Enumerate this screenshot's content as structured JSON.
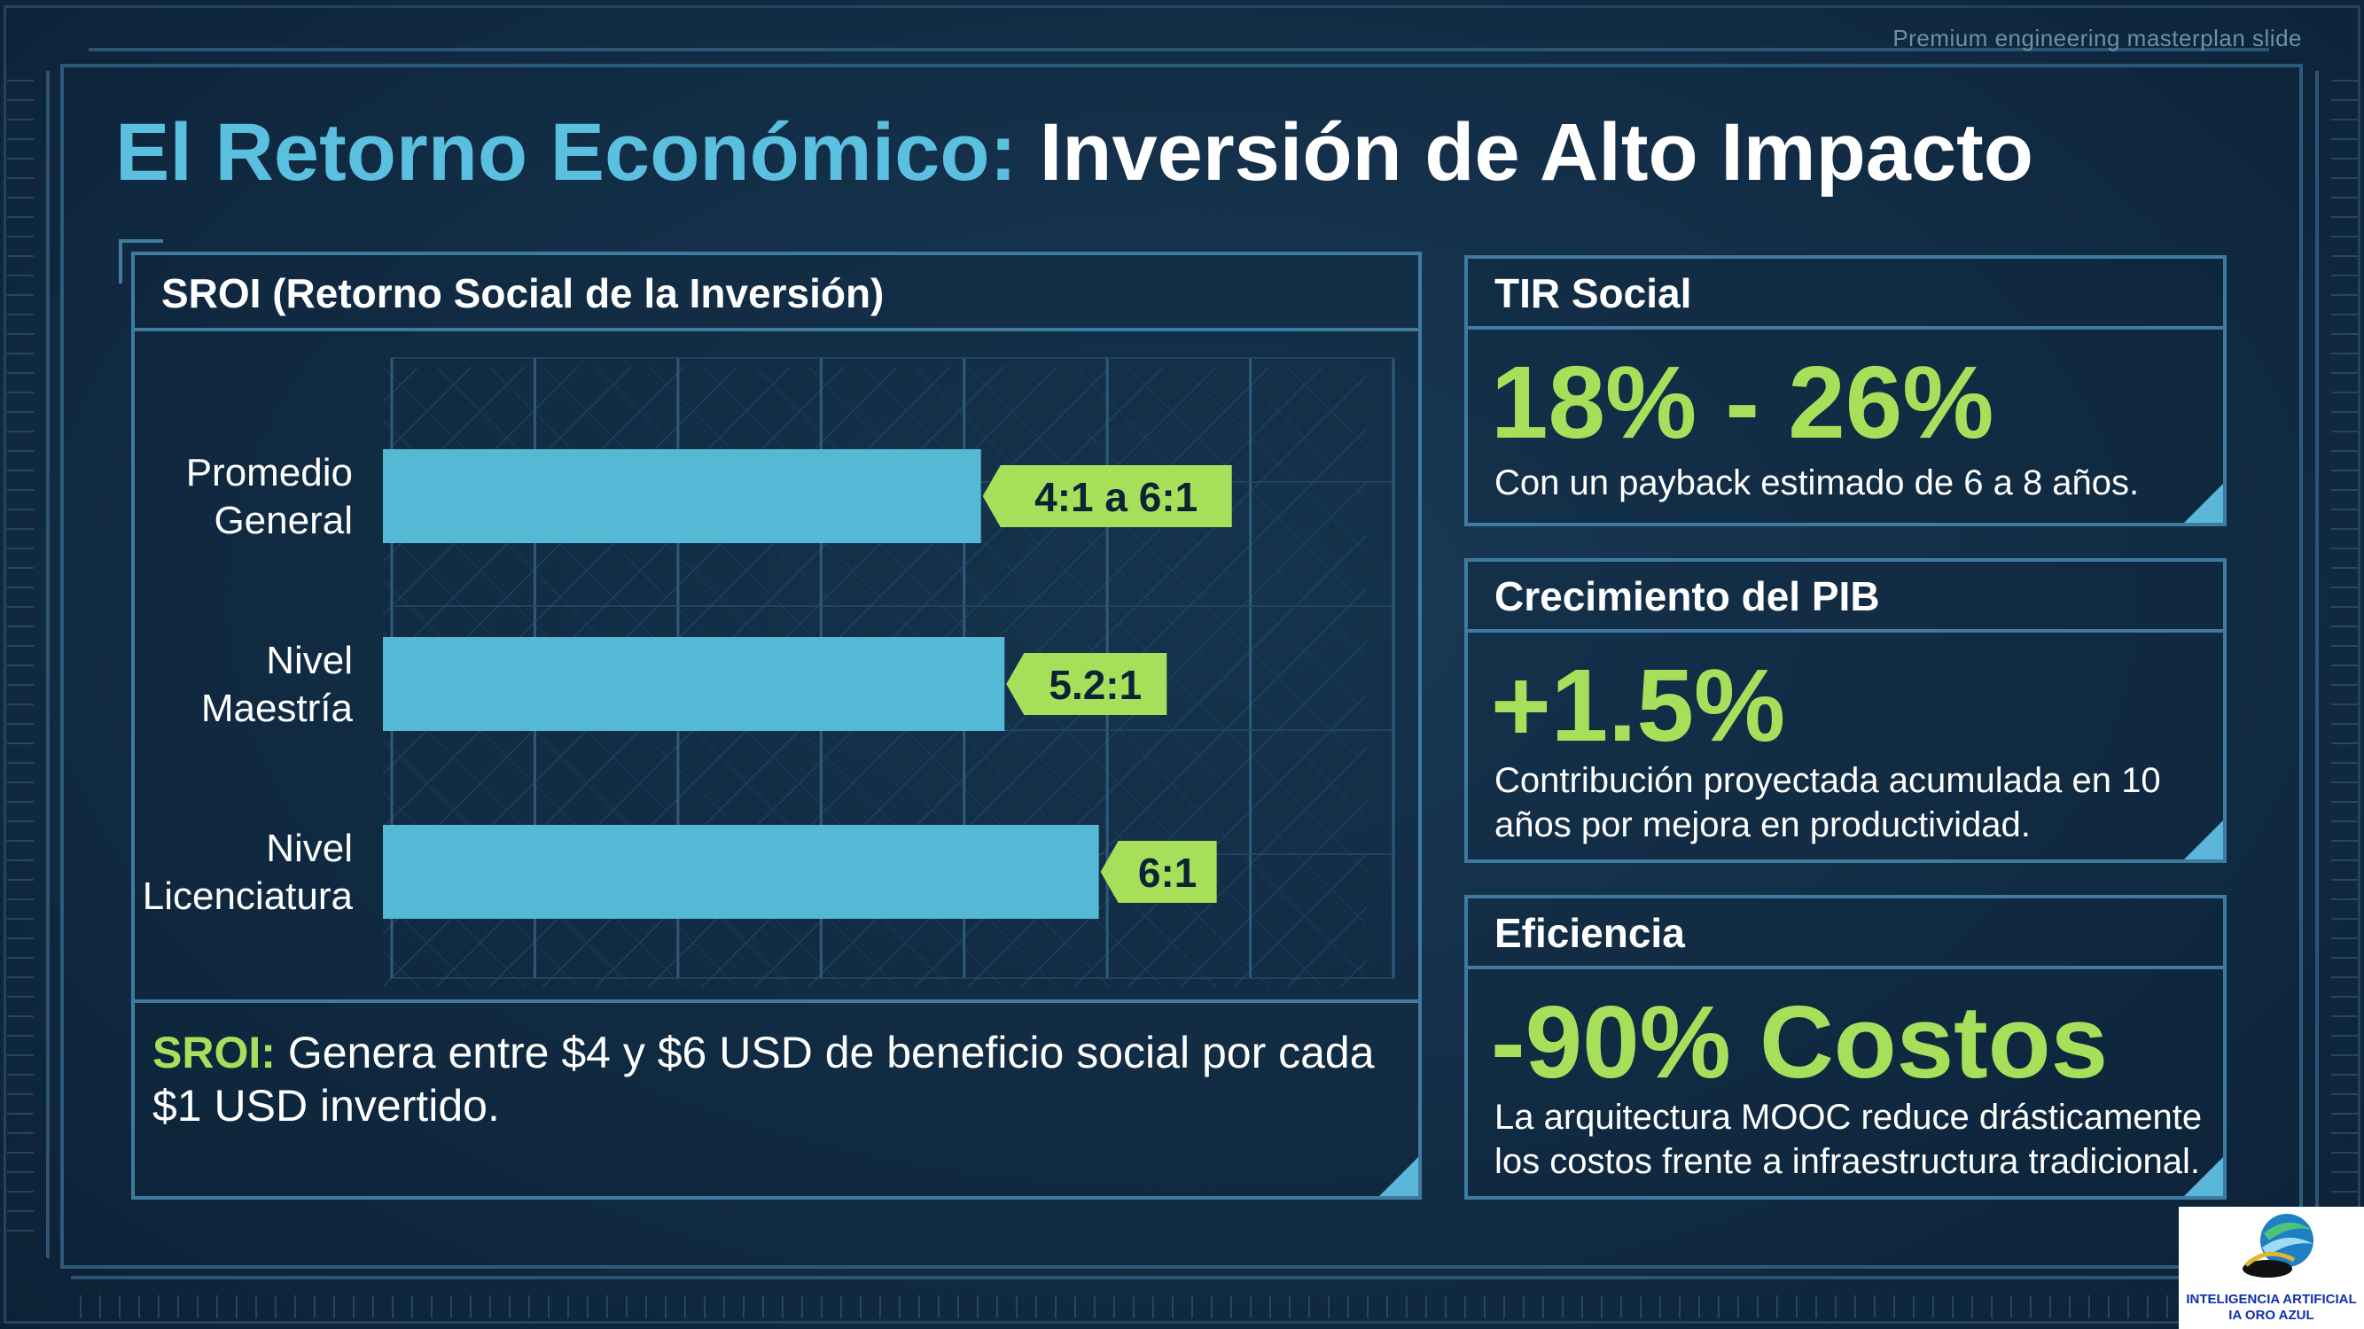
{
  "slide": {
    "corner_note": "Premium engineering masterplan slide",
    "title_part1": "El Retorno Económico:",
    "title_part2": "Inversión de Alto Impacto"
  },
  "sroi_panel": {
    "heading": "SROI (Retorno Social de la Inversión)",
    "note_label": "SROI:",
    "note_text": "Genera entre $4 y $6 USD de beneficio social por cada $1 USD invertido."
  },
  "chart_data": {
    "type": "bar",
    "orientation": "horizontal",
    "title": "SROI (Retorno Social de la Inversión)",
    "categories": [
      "Promedio General",
      "Nivel Maestría",
      "Nivel Licenciatura"
    ],
    "category_lines": [
      [
        "Promedio",
        "General"
      ],
      [
        "Nivel",
        "Maestría"
      ],
      [
        "Nivel",
        "Licenciatura"
      ]
    ],
    "values": [
      5,
      5.2,
      6
    ],
    "data_labels": [
      "4:1 a 6:1",
      "5.2:1",
      "6:1"
    ],
    "xlim": [
      0,
      8.5
    ],
    "grid": true,
    "colors": {
      "bar": "#55b9d6",
      "label_bg": "#a6e05b",
      "label_text": "#0d2236"
    }
  },
  "kpis": [
    {
      "heading": "TIR Social",
      "value": "18% - 26%",
      "desc": "Con un payback estimado de 6 a 8 años."
    },
    {
      "heading": "Crecimiento del PIB",
      "value": "+1.5%",
      "desc": "Contribución proyectada acumulada en 10 años por mejora en productividad."
    },
    {
      "heading": "Eficiencia",
      "value": "-90% Costos",
      "desc": "La arquitectura MOOC reduce drásticamente los costos frente a infraestructura tradicional."
    }
  ],
  "logo": {
    "line1": "INTELIGENCIA ARTIFICIAL",
    "line2": "IA ORO AZUL"
  },
  "colors": {
    "background": "#102b43",
    "accent_blue": "#5bbfdf",
    "accent_green": "#a6e05b",
    "border": "#3f7ba0"
  }
}
